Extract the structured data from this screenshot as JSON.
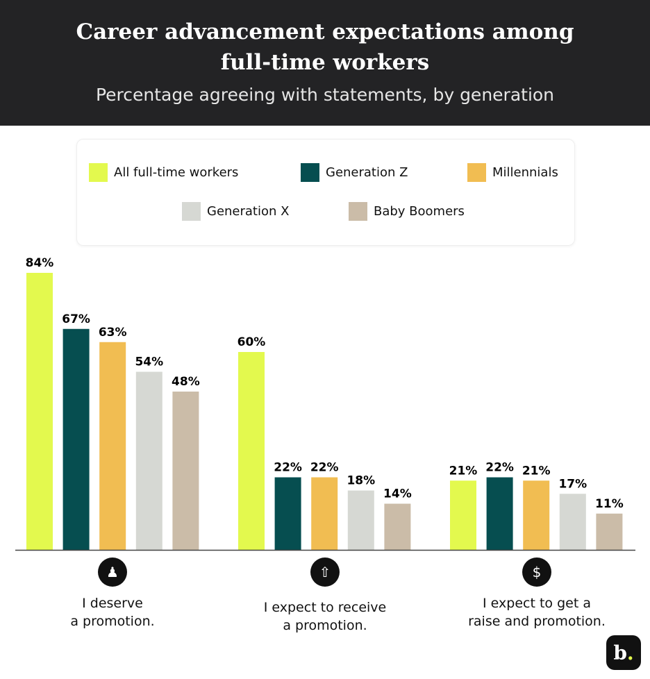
{
  "chart_data": {
    "type": "bar",
    "title": "Career advancement expectations among full-time workers",
    "subtitle": "Percentage agreeing with statements, by generation",
    "categories": [
      "I deserve a promotion.",
      "I expect to receive a promotion.",
      "I expect to get a raise and promotion."
    ],
    "category_icons": [
      "businessman-icon",
      "rising-arrow-icon",
      "dollar-growth-icon"
    ],
    "series": [
      {
        "name": "All full-time workers",
        "color": "#e3f94e",
        "values": [
          84,
          60,
          21
        ]
      },
      {
        "name": "Generation Z",
        "color": "#064e50",
        "values": [
          67,
          22,
          22
        ]
      },
      {
        "name": "Millennials",
        "color": "#f1bd52",
        "values": [
          63,
          22,
          21
        ]
      },
      {
        "name": "Generation X",
        "color": "#d6d8d3",
        "values": [
          54,
          18,
          17
        ]
      },
      {
        "name": "Baby Boomers",
        "color": "#cbbca8",
        "values": [
          48,
          14,
          11
        ]
      }
    ],
    "value_format": "%",
    "ylim": [
      0,
      84
    ],
    "grid": false,
    "legend_position": "top"
  },
  "brand": {
    "logo_text": "b",
    "logo_dot": "."
  }
}
